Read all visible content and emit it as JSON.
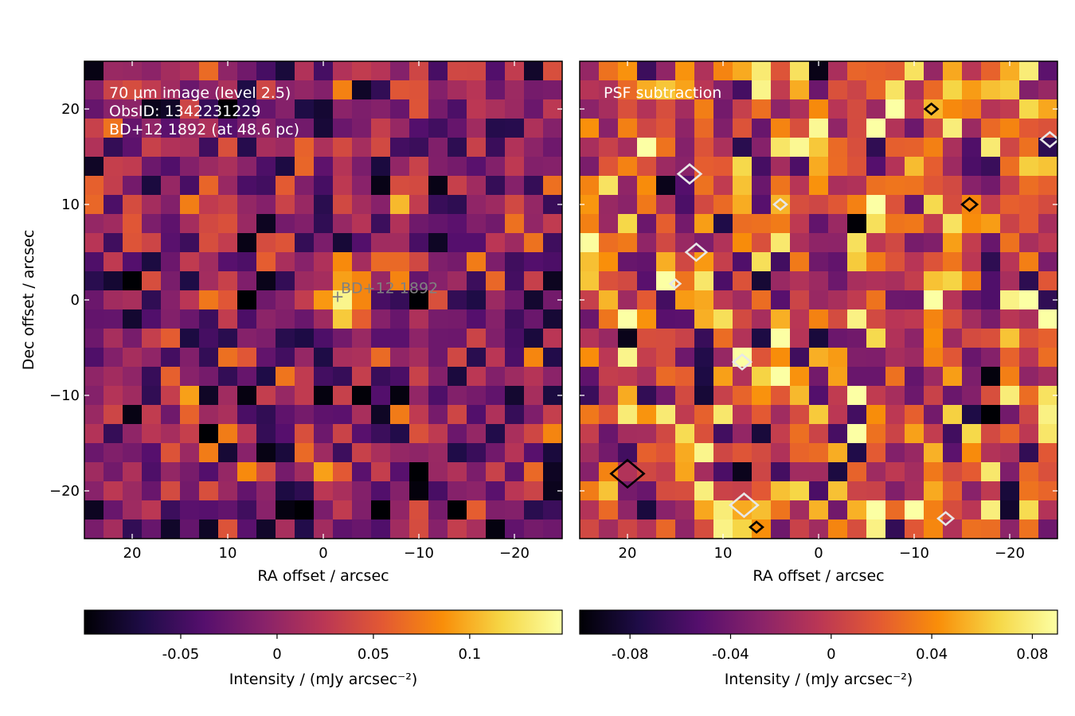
{
  "chart_data": [
    {
      "type": "heatmap",
      "annotations": [
        "70 µm image (level 2.5)",
        "ObsID: 1342231229",
        "BD+12 1892 (at 48.6 pc)"
      ],
      "source_label": "BD+12  1892",
      "source_position": [
        -1.5,
        0.3
      ],
      "xlabel": "RA offset / arcsec",
      "ylabel": "Dec offset / arcsec",
      "xlim": [
        25,
        -25
      ],
      "ylim": [
        -25,
        25
      ],
      "x_ticks": [
        {
          "v": 20,
          "t": "20"
        },
        {
          "v": 10,
          "t": "10"
        },
        {
          "v": 0,
          "t": "0"
        },
        {
          "v": -10,
          "t": "−10"
        },
        {
          "v": -20,
          "t": "−20"
        }
      ],
      "y_ticks": [
        {
          "v": 20,
          "t": "20"
        },
        {
          "v": 10,
          "t": "10"
        },
        {
          "v": 0,
          "t": "0"
        },
        {
          "v": -10,
          "t": "−10"
        },
        {
          "v": -20,
          "t": "−20"
        }
      ],
      "grid_size": 25,
      "colormap": "inferno",
      "colorbar": {
        "label": "Intensity / (mJy arcsec⁻²)",
        "range": [
          -0.1,
          0.148
        ],
        "ticks": [
          {
            "v": -0.05,
            "t": "-0.05"
          },
          {
            "v": 0,
            "t": "0"
          },
          {
            "v": 0.05,
            "t": "0.05"
          },
          {
            "v": 0.1,
            "t": "0.1"
          }
        ]
      }
    },
    {
      "type": "heatmap",
      "annotations": [
        "PSF subtraction"
      ],
      "xlabel": "RA offset / arcsec",
      "xlim": [
        25,
        -25
      ],
      "ylim": [
        -25,
        25
      ],
      "x_ticks": [
        {
          "v": 20,
          "t": "20"
        },
        {
          "v": 10,
          "t": "10"
        },
        {
          "v": 0,
          "t": "0"
        },
        {
          "v": -10,
          "t": "−10"
        },
        {
          "v": -20,
          "t": "−20"
        }
      ],
      "grid_size": 25,
      "colormap": "inferno",
      "contours": [
        {
          "x": 13.5,
          "y": 13.2,
          "color": "white",
          "size": 0.9
        },
        {
          "x": 4.0,
          "y": 10.0,
          "color": "white",
          "size": 0.5
        },
        {
          "x": -15.8,
          "y": 10.0,
          "color": "black",
          "size": 0.6
        },
        {
          "x": 12.8,
          "y": 5.0,
          "color": "white",
          "size": 0.8
        },
        {
          "x": 15.0,
          "y": 1.7,
          "color": "white",
          "size": 0.4
        },
        {
          "x": 8.0,
          "y": -6.5,
          "color": "white",
          "size": 0.7
        },
        {
          "x": 20.0,
          "y": -18.2,
          "color": "black",
          "size": 1.3
        },
        {
          "x": 7.8,
          "y": -21.5,
          "color": "white",
          "size": 1.1
        },
        {
          "x": -13.3,
          "y": -22.9,
          "color": "white",
          "size": 0.6
        },
        {
          "x": -11.8,
          "y": 20.0,
          "color": "black",
          "size": 0.5
        },
        {
          "x": -24.2,
          "y": 16.8,
          "color": "white",
          "size": 0.7
        },
        {
          "x": 6.5,
          "y": -23.8,
          "color": "black",
          "size": 0.5
        }
      ],
      "colorbar": {
        "label": "Intensity / (mJy arcsec⁻²)",
        "range": [
          -0.1,
          0.09
        ],
        "ticks": [
          {
            "v": -0.08,
            "t": "-0.08"
          },
          {
            "v": -0.04,
            "t": "-0.04"
          },
          {
            "v": 0,
            "t": "0"
          },
          {
            "v": 0.04,
            "t": "0.04"
          },
          {
            "v": 0.08,
            "t": "0.08"
          }
        ]
      }
    }
  ]
}
